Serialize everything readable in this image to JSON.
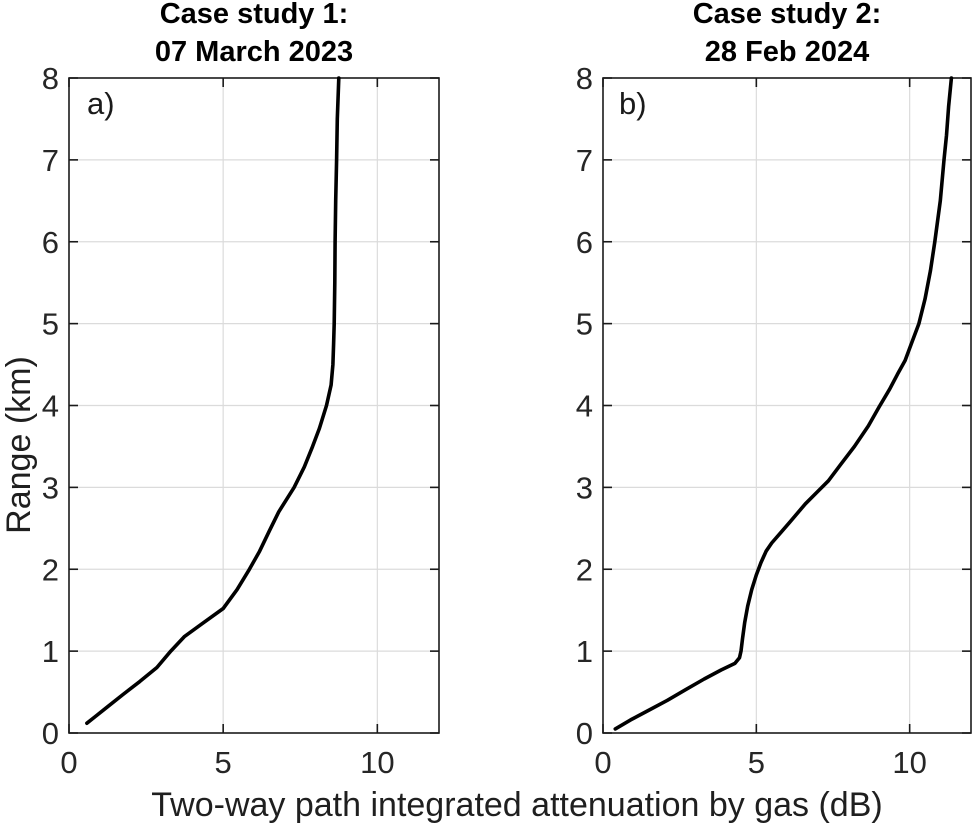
{
  "figure": {
    "kind": "two-panel line figure",
    "background": "#ffffff"
  },
  "xlabel": "Two-way path integrated attenuation by gas (dB)",
  "ylabel": "Range (km)",
  "colors": {
    "curve": "#000000",
    "grid": "#dbdbdb",
    "frame": "#1a1a1a",
    "tick_text": "#262626",
    "title_text": "#000000"
  },
  "chart_data": [
    {
      "type": "line",
      "panel_label": "a)",
      "title": [
        "Case study 1:",
        "07 March 2023"
      ],
      "xlabel": "Two-way path integrated attenuation by gas (dB)",
      "ylabel": "Range (km)",
      "xlim": [
        0,
        12
      ],
      "ylim": [
        0,
        8
      ],
      "xticks": [
        0,
        5,
        10
      ],
      "xtick_labels": [
        "0",
        "5",
        "10"
      ],
      "yticks": [
        0,
        1,
        2,
        3,
        4,
        5,
        6,
        7,
        8
      ],
      "ytick_labels": [
        "0",
        "1",
        "2",
        "3",
        "4",
        "5",
        "6",
        "7",
        "8"
      ],
      "grid": true,
      "legend": "none",
      "series": [
        {
          "name": "two-way gas attenuation vs range",
          "x_db": [
            0.58,
            0.85,
            1.25,
            1.75,
            2.3,
            2.85,
            3.3,
            3.75,
            4.3,
            5.0,
            5.45,
            5.85,
            6.18,
            6.5,
            6.8,
            7.3,
            7.63,
            7.9,
            8.12,
            8.35,
            8.5,
            8.56,
            8.58,
            8.6,
            8.62,
            8.63,
            8.65,
            8.68,
            8.7,
            8.75
          ],
          "y_km": [
            0.12,
            0.2,
            0.32,
            0.47,
            0.63,
            0.8,
            1.0,
            1.18,
            1.33,
            1.52,
            1.75,
            2.0,
            2.22,
            2.47,
            2.7,
            3.0,
            3.25,
            3.5,
            3.72,
            4.0,
            4.25,
            4.5,
            4.75,
            5.0,
            5.5,
            6.0,
            6.5,
            7.0,
            7.5,
            8.0
          ]
        }
      ]
    },
    {
      "type": "line",
      "panel_label": "b)",
      "title": [
        "Case study 2:",
        "28 Feb 2024"
      ],
      "xlabel": "Two-way path integrated attenuation by gas (dB)",
      "ylabel": "Range (km)",
      "xlim": [
        0,
        12
      ],
      "ylim": [
        0,
        8
      ],
      "xticks": [
        0,
        5,
        10
      ],
      "xtick_labels": [
        "0",
        "5",
        "10"
      ],
      "yticks": [
        0,
        1,
        2,
        3,
        4,
        5,
        6,
        7,
        8
      ],
      "ytick_labels": [
        "0",
        "1",
        "2",
        "3",
        "4",
        "5",
        "6",
        "7",
        "8"
      ],
      "grid": true,
      "legend": "none",
      "series": [
        {
          "name": "two-way gas attenuation vs range",
          "x_db": [
            0.4,
            0.9,
            1.5,
            2.1,
            2.7,
            3.3,
            3.85,
            4.3,
            4.45,
            4.5,
            4.55,
            4.62,
            4.72,
            4.85,
            5.0,
            5.15,
            5.32,
            5.5,
            5.8,
            6.1,
            6.6,
            7.0,
            7.35,
            7.75,
            8.2,
            8.65,
            9.0,
            9.35,
            9.6,
            9.85,
            10.05,
            10.3,
            10.5,
            10.68,
            10.82,
            11.0,
            11.12,
            11.2,
            11.27,
            11.36
          ],
          "y_km": [
            0.05,
            0.16,
            0.28,
            0.4,
            0.53,
            0.66,
            0.77,
            0.85,
            0.92,
            1.0,
            1.15,
            1.35,
            1.55,
            1.75,
            1.93,
            2.08,
            2.22,
            2.32,
            2.45,
            2.58,
            2.8,
            2.95,
            3.08,
            3.28,
            3.5,
            3.75,
            3.98,
            4.2,
            4.38,
            4.55,
            4.75,
            5.0,
            5.3,
            5.65,
            6.0,
            6.5,
            7.0,
            7.3,
            7.65,
            8.0
          ]
        }
      ]
    }
  ]
}
